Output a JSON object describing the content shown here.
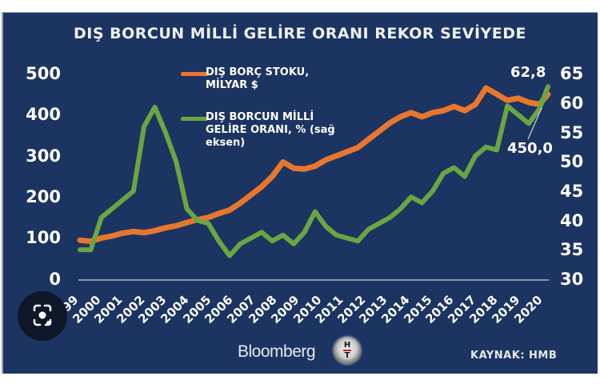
{
  "title": "DIŞ BORCUN MİLLİ GELİRE ORANI REKOR SEVİYEDE",
  "left_axis": {
    "ticks": [
      "500",
      "400",
      "300",
      "200",
      "100",
      "0"
    ]
  },
  "right_axis": {
    "ticks": [
      "65",
      "60",
      "55",
      "50",
      "45",
      "40",
      "35",
      "30"
    ]
  },
  "legend": {
    "series1": {
      "line1": "DIŞ BORÇ STOKU,",
      "line2": "MİLYAR $",
      "color": "#e8772e"
    },
    "series2": {
      "line1": "DIŞ BORCUN MİLLİ",
      "line2": "GELİRE ORANI, % (sağ",
      "line3": "eksen)",
      "color": "#6aa641"
    }
  },
  "annotations": {
    "ratio_last": "62,8",
    "stock_last": "450,0"
  },
  "x_ticks": [
    "1999",
    "2000",
    "2001",
    "2002",
    "2003",
    "2004",
    "2005",
    "2006",
    "2007",
    "2008",
    "2009",
    "2010",
    "2011",
    "2012",
    "2013",
    "2014",
    "2015",
    "2016",
    "2017",
    "2018",
    "2019",
    "2020"
  ],
  "footer": {
    "brand": "Bloomberg",
    "logo_top": "H",
    "logo_bottom": "T",
    "source": "KAYNAK: HMB"
  },
  "colors": {
    "background": "#1c3461",
    "stock": "#e8772e",
    "ratio": "#6aa641",
    "text": "#ffffff"
  },
  "chart_data": {
    "type": "line",
    "title": "DIŞ BORCUN MİLLİ GELİRE ORANI REKOR SEVİYEDE",
    "xlabel": "",
    "ylabel_left": "DIŞ BORÇ STOKU, MİLYAR $",
    "ylabel_right": "DIŞ BORCUN MİLLİ GELİRE ORANI, %",
    "ylim_left": [
      0,
      500
    ],
    "ylim_right": [
      30,
      65
    ],
    "grid": false,
    "legend_position": "top-center",
    "x": [
      1999,
      1999.5,
      2000,
      2000.5,
      2001,
      2001.5,
      2002,
      2002.5,
      2003,
      2003.5,
      2004,
      2004.5,
      2005,
      2005.5,
      2006,
      2006.5,
      2007,
      2007.5,
      2008,
      2008.5,
      2009,
      2009.5,
      2010,
      2010.5,
      2011,
      2011.5,
      2012,
      2012.5,
      2013,
      2013.5,
      2014,
      2014.5,
      2015,
      2015.5,
      2016,
      2016.5,
      2017,
      2017.5,
      2018,
      2018.5,
      2019,
      2019.5,
      2020,
      2020.5,
      2020.9
    ],
    "series": [
      {
        "name": "DIŞ BORÇ STOKU, MİLYAR $",
        "axis": "left",
        "values": [
          95,
          92,
          100,
          105,
          112,
          116,
          113,
          118,
          125,
          130,
          138,
          145,
          150,
          160,
          168,
          185,
          205,
          225,
          250,
          285,
          270,
          268,
          275,
          290,
          300,
          310,
          320,
          340,
          360,
          380,
          395,
          405,
          395,
          405,
          410,
          420,
          410,
          425,
          465,
          450,
          435,
          440,
          430,
          425,
          450
        ]
      },
      {
        "name": "DIŞ BORCUN MİLLİ GELİRE ORANI, % (sağ eksen)",
        "axis": "right",
        "values": [
          35,
          35,
          40.5,
          42,
          43.5,
          45,
          56,
          59.3,
          55,
          50,
          42,
          40,
          39.5,
          36.5,
          34,
          36,
          37,
          38,
          36.5,
          37.5,
          36,
          38,
          41.5,
          39,
          37.5,
          37,
          36.5,
          38.5,
          39.5,
          40.5,
          42,
          44,
          43,
          45,
          48,
          49,
          47.5,
          51,
          52.5,
          52,
          59.5,
          58,
          56.5,
          59,
          62.8
        ]
      }
    ],
    "annotations": [
      {
        "text": "62,8",
        "series": "ratio",
        "x": 2020.9,
        "value": 62.8
      },
      {
        "text": "450,0",
        "series": "stock",
        "x": 2020.9,
        "value": 450.0
      }
    ]
  }
}
